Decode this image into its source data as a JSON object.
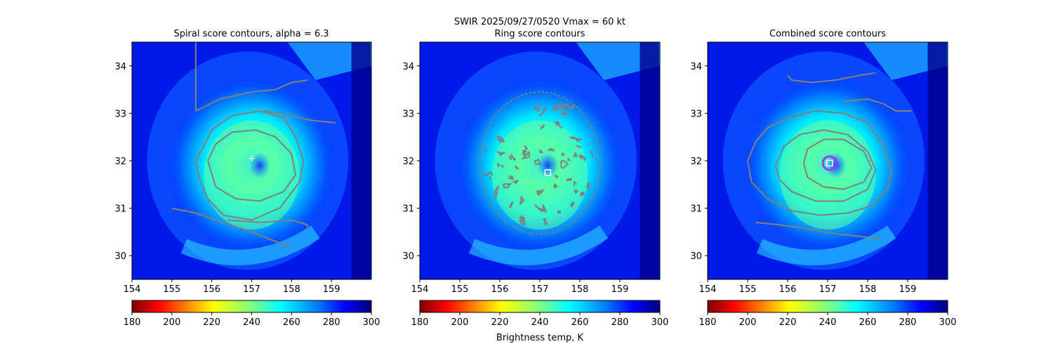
{
  "figure": {
    "suptitle": "SWIR  2025/09/27/0520    Vmax = 60 kt",
    "colorbar_label": "Brightness temp, K",
    "colorbar_ticks": [
      "180",
      "200",
      "220",
      "240",
      "260",
      "280",
      "300"
    ],
    "colormap": "jet_r",
    "contour_color": "#808080"
  },
  "chart_data": [
    {
      "type": "heatmap",
      "title": "Spiral score contours, alpha =  6.3",
      "xlabel": "",
      "ylabel": "",
      "xlim": [
        154.0,
        160.0
      ],
      "ylim": [
        29.5,
        34.5
      ],
      "xticks": [
        "154",
        "155",
        "156",
        "157",
        "158",
        "159"
      ],
      "yticks": [
        "30",
        "31",
        "32",
        "33",
        "34"
      ],
      "colorbar_range": [
        180,
        300
      ],
      "center_marker": {
        "shape": "plus",
        "lon": 157.0,
        "lat": 32.05,
        "color": "#ffffff"
      },
      "spiral_contours": [
        {
          "name": "outer-north-arm",
          "points": [
            [
              155.6,
              34.7
            ],
            [
              155.6,
              33.05
            ],
            [
              156.2,
              33.3
            ],
            [
              157.0,
              33.45
            ],
            [
              157.6,
              33.5
            ],
            [
              158.0,
              33.65
            ],
            [
              158.4,
              33.7
            ]
          ]
        },
        {
          "name": "inner-north-arm",
          "points": [
            [
              157.3,
              33.05
            ],
            [
              158.0,
              32.95
            ],
            [
              158.5,
              32.85
            ],
            [
              159.1,
              32.8
            ]
          ]
        },
        {
          "name": "outer-ring",
          "points": [
            [
              155.6,
              32.0
            ],
            [
              155.8,
              32.3
            ],
            [
              156.0,
              32.65
            ],
            [
              156.5,
              32.95
            ],
            [
              157.2,
              33.05
            ],
            [
              157.8,
              32.9
            ],
            [
              158.1,
              32.5
            ],
            [
              158.3,
              32.0
            ],
            [
              158.2,
              31.55
            ],
            [
              157.7,
              31.0
            ],
            [
              157.0,
              30.75
            ],
            [
              156.3,
              30.85
            ],
            [
              155.9,
              31.2
            ],
            [
              155.7,
              31.6
            ],
            [
              155.6,
              32.0
            ]
          ]
        },
        {
          "name": "inner-ring",
          "points": [
            [
              155.9,
              32.0
            ],
            [
              156.1,
              32.35
            ],
            [
              156.5,
              32.6
            ],
            [
              157.1,
              32.65
            ],
            [
              157.6,
              32.5
            ],
            [
              158.0,
              32.15
            ],
            [
              158.1,
              31.7
            ],
            [
              157.8,
              31.35
            ],
            [
              157.2,
              31.15
            ],
            [
              156.6,
              31.2
            ],
            [
              156.1,
              31.45
            ],
            [
              155.9,
              32.0
            ]
          ]
        },
        {
          "name": "south-arm",
          "points": [
            [
              155.0,
              31.0
            ],
            [
              155.6,
              30.9
            ],
            [
              156.3,
              30.7
            ],
            [
              157.0,
              30.5
            ],
            [
              157.6,
              30.3
            ],
            [
              158.0,
              30.2
            ]
          ]
        },
        {
          "name": "south-arm-2",
          "points": [
            [
              156.4,
              30.75
            ],
            [
              157.2,
              30.7
            ],
            [
              158.0,
              30.75
            ],
            [
              158.4,
              30.65
            ],
            [
              158.4,
              30.55
            ]
          ]
        }
      ]
    },
    {
      "type": "heatmap",
      "title": "Ring score contours",
      "xlabel": "",
      "ylabel": "",
      "xlim": [
        154.0,
        160.0
      ],
      "ylim": [
        29.5,
        34.5
      ],
      "xticks": [
        "154",
        "155",
        "156",
        "157",
        "158",
        "159"
      ],
      "yticks": [
        "30",
        "31",
        "32",
        "33",
        "34"
      ],
      "colorbar_range": [
        180,
        300
      ],
      "center_marker": {
        "shape": "square",
        "lon": 157.2,
        "lat": 31.75,
        "color": "#ffffff"
      },
      "ring_region": {
        "lon": 157.0,
        "lat": 31.95,
        "radius_deg": 1.5
      }
    },
    {
      "type": "heatmap",
      "title": "Combined score contours",
      "xlabel": "",
      "ylabel": "",
      "xlim": [
        154.0,
        160.0
      ],
      "ylim": [
        29.5,
        34.5
      ],
      "xticks": [
        "154",
        "155",
        "156",
        "157",
        "158",
        "159"
      ],
      "yticks": [
        "30",
        "31",
        "32",
        "33",
        "34"
      ],
      "colorbar_range": [
        180,
        300
      ],
      "center_marker": {
        "shape": "square",
        "lon": 157.05,
        "lat": 31.95,
        "color": "#ffffff"
      },
      "highlight_circle": {
        "lon": 157.05,
        "lat": 31.95,
        "radius_deg": 0.17,
        "color": "#aa33ff"
      },
      "combined_contours": [
        {
          "name": "north-arm",
          "points": [
            [
              156.0,
              33.8
            ],
            [
              156.1,
              33.7
            ],
            [
              156.6,
              33.65
            ],
            [
              157.2,
              33.7
            ],
            [
              157.8,
              33.8
            ],
            [
              158.2,
              33.85
            ]
          ]
        },
        {
          "name": "mid-arm",
          "points": [
            [
              157.4,
              33.25
            ],
            [
              158.0,
              33.3
            ],
            [
              158.4,
              33.2
            ],
            [
              158.7,
              33.05
            ],
            [
              159.1,
              33.05
            ]
          ]
        },
        {
          "name": "outer-ring",
          "points": [
            [
              155.0,
              32.0
            ],
            [
              155.2,
              32.4
            ],
            [
              155.5,
              32.7
            ],
            [
              156.0,
              32.9
            ],
            [
              156.7,
              33.05
            ],
            [
              157.4,
              33.0
            ],
            [
              158.0,
              32.8
            ],
            [
              158.4,
              32.3
            ],
            [
              158.6,
              31.8
            ],
            [
              158.5,
              31.4
            ],
            [
              158.1,
              31.05
            ],
            [
              157.5,
              30.9
            ],
            [
              156.8,
              30.85
            ],
            [
              156.1,
              30.95
            ],
            [
              155.5,
              31.2
            ],
            [
              155.1,
              31.55
            ],
            [
              155.0,
              32.0
            ]
          ]
        },
        {
          "name": "middle-ring",
          "points": [
            [
              155.7,
              31.9
            ],
            [
              155.9,
              32.3
            ],
            [
              156.3,
              32.55
            ],
            [
              156.9,
              32.65
            ],
            [
              157.5,
              32.55
            ],
            [
              158.0,
              32.2
            ],
            [
              158.2,
              31.8
            ],
            [
              158.0,
              31.4
            ],
            [
              157.4,
              31.15
            ],
            [
              156.7,
              31.15
            ],
            [
              156.1,
              31.35
            ],
            [
              155.8,
              31.6
            ],
            [
              155.7,
              31.9
            ]
          ]
        },
        {
          "name": "inner-ring",
          "points": [
            [
              156.4,
              31.95
            ],
            [
              156.5,
              32.25
            ],
            [
              156.9,
              32.45
            ],
            [
              157.4,
              32.45
            ],
            [
              157.9,
              32.2
            ],
            [
              158.1,
              31.85
            ],
            [
              157.9,
              31.55
            ],
            [
              157.4,
              31.4
            ],
            [
              156.9,
              31.45
            ],
            [
              156.5,
              31.65
            ],
            [
              156.4,
              31.95
            ]
          ]
        },
        {
          "name": "south-arm",
          "points": [
            [
              155.2,
              30.7
            ],
            [
              155.8,
              30.65
            ],
            [
              156.6,
              30.55
            ],
            [
              157.3,
              30.45
            ],
            [
              157.9,
              30.4
            ],
            [
              158.3,
              30.35
            ]
          ]
        }
      ]
    }
  ]
}
